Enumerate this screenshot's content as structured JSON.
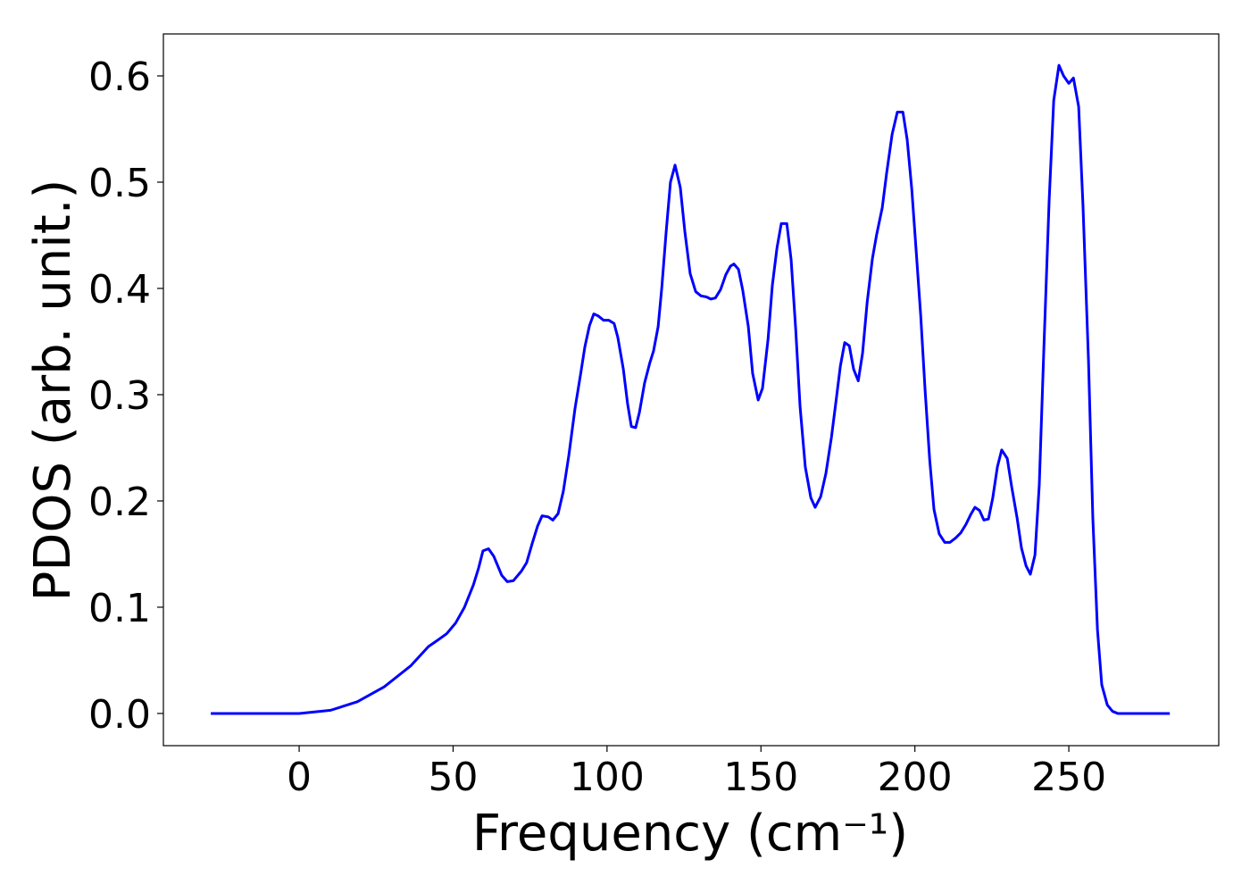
{
  "chart_data": {
    "type": "line",
    "xlabel": "Frequency (cm⁻¹)",
    "ylabel": "PDOS (arb. unit.)",
    "color": "#0000ff",
    "grid": false,
    "xlim": [
      -44.1,
      298.7
    ],
    "ylim": [
      -0.0303,
      0.6395
    ],
    "xticks": [
      0,
      50,
      100,
      150,
      200,
      250
    ],
    "yticks": [
      {
        "value": 0,
        "label": "0.0"
      },
      0.1,
      0.2,
      0.3,
      0.4,
      0.5,
      0.6
    ],
    "x": [
      -28.7,
      0,
      10.2,
      18.9,
      27.6,
      36.3,
      42,
      45,
      47.9,
      50.8,
      53.7,
      56.6,
      58.3,
      59.7,
      61.5,
      63.2,
      65.8,
      67.6,
      69.6,
      72.2,
      73.9,
      75.7,
      77.4,
      78.9,
      80.9,
      82.4,
      84.1,
      85.8,
      87.6,
      89.6,
      91.4,
      92.8,
      94.3,
      95.7,
      97.2,
      98.9,
      100.6,
      102.3,
      103.5,
      105.3,
      106.7,
      107.9,
      109.3,
      110.5,
      112.2,
      113.9,
      115.1,
      116.6,
      117.8,
      119.2,
      120.6,
      122.1,
      123.8,
      125.3,
      127.0,
      128.8,
      130.5,
      132.3,
      133.7,
      135.2,
      136.9,
      138.6,
      140.1,
      141.2,
      142.7,
      144.1,
      145.9,
      147.3,
      149.1,
      150.5,
      152.3,
      153.7,
      155.2,
      156.6,
      158.4,
      159.8,
      161.3,
      162.7,
      164.4,
      166.2,
      167.6,
      169.4,
      171.1,
      172.9,
      174.3,
      175.8,
      177.2,
      178.7,
      180.1,
      181.6,
      183.0,
      184.5,
      186.2,
      187.6,
      189.4,
      190.8,
      192.6,
      194.3,
      196.1,
      197.5,
      199.0,
      200.4,
      201.9,
      203.3,
      204.8,
      206.2,
      207.9,
      209.7,
      211.4,
      213.2,
      214.9,
      216.6,
      218.1,
      219.5,
      221.0,
      222.4,
      223.9,
      225.3,
      226.8,
      228.2,
      230.0,
      231.4,
      233.2,
      234.6,
      236.1,
      237.5,
      239.0,
      240.4,
      241.9,
      243.6,
      245.1,
      246.8,
      248.3,
      250.0,
      251.5,
      253.2,
      254.6,
      256.4,
      257.8,
      259.3,
      260.7,
      262.5,
      264.2,
      265.9,
      282.8
    ],
    "values": [
      0,
      0,
      0.003,
      0.011,
      0.025,
      0.045,
      0.063,
      0.069,
      0.075,
      0.085,
      0.1,
      0.121,
      0.137,
      0.153,
      0.155,
      0.148,
      0.13,
      0.124,
      0.125,
      0.134,
      0.142,
      0.16,
      0.176,
      0.186,
      0.185,
      0.182,
      0.188,
      0.209,
      0.243,
      0.287,
      0.319,
      0.345,
      0.365,
      0.376,
      0.374,
      0.37,
      0.37,
      0.367,
      0.354,
      0.324,
      0.291,
      0.27,
      0.269,
      0.283,
      0.311,
      0.33,
      0.341,
      0.364,
      0.401,
      0.453,
      0.5,
      0.516,
      0.495,
      0.453,
      0.414,
      0.397,
      0.393,
      0.392,
      0.39,
      0.391,
      0.399,
      0.413,
      0.421,
      0.423,
      0.418,
      0.398,
      0.364,
      0.32,
      0.295,
      0.306,
      0.352,
      0.403,
      0.438,
      0.461,
      0.461,
      0.427,
      0.361,
      0.289,
      0.232,
      0.203,
      0.194,
      0.204,
      0.226,
      0.26,
      0.292,
      0.327,
      0.349,
      0.346,
      0.324,
      0.313,
      0.339,
      0.387,
      0.428,
      0.451,
      0.476,
      0.508,
      0.545,
      0.566,
      0.566,
      0.54,
      0.493,
      0.436,
      0.374,
      0.305,
      0.239,
      0.192,
      0.169,
      0.161,
      0.161,
      0.165,
      0.17,
      0.178,
      0.187,
      0.194,
      0.191,
      0.182,
      0.183,
      0.203,
      0.232,
      0.248,
      0.24,
      0.214,
      0.184,
      0.156,
      0.139,
      0.131,
      0.149,
      0.215,
      0.344,
      0.482,
      0.577,
      0.61,
      0.6,
      0.593,
      0.598,
      0.571,
      0.478,
      0.331,
      0.184,
      0.079,
      0.027,
      0.008,
      0.002,
      0,
      0
    ]
  }
}
